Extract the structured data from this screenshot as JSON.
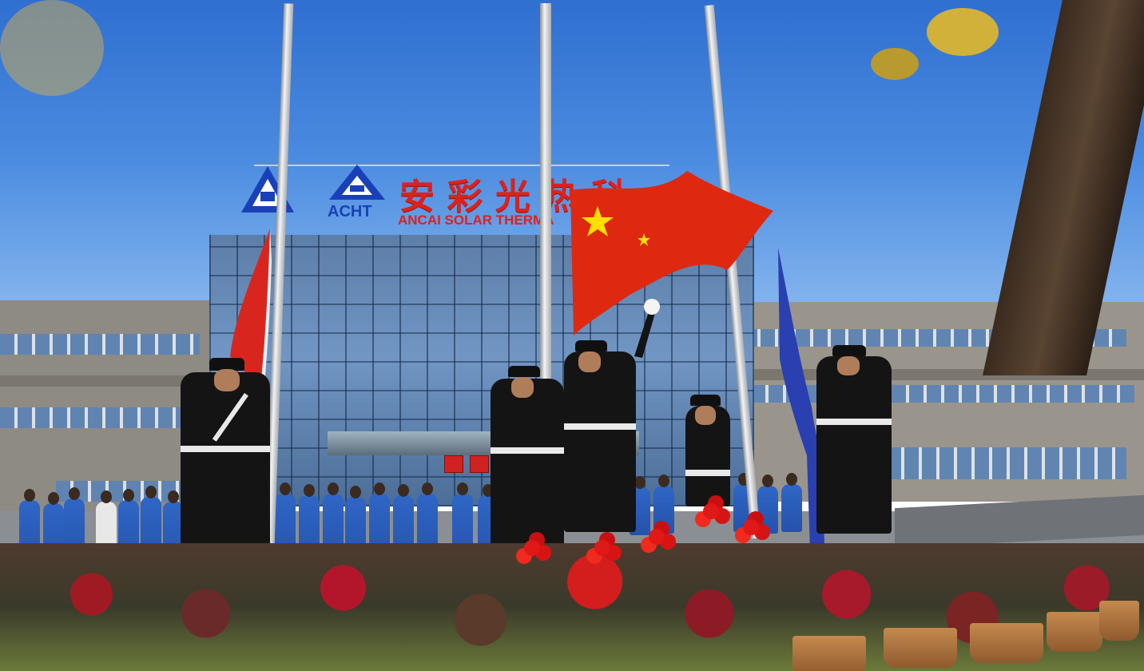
{
  "photo": {
    "description_visible_text": true
  },
  "signage": {
    "logo_text": "ACHT",
    "chinese_name_chars": [
      "安",
      "彩",
      "光",
      "热",
      "科"
    ],
    "english_name": "ANCAI SOLAR THERMA"
  },
  "colors": {
    "sky": "#2f6fd0",
    "sign_red": "#e0201a",
    "logo_blue": "#1a40b8",
    "flag_red": "#de2910",
    "flag_yellow": "#ffde00",
    "uniform_blue": "#2f66c6",
    "guard_black": "#141414"
  },
  "icons": {
    "logo": "acht-triangle-logo-icon",
    "flag_national": "china-flag-icon",
    "flag_company": "blue-company-flag-icon",
    "flag_left": "red-white-flag-icon"
  }
}
